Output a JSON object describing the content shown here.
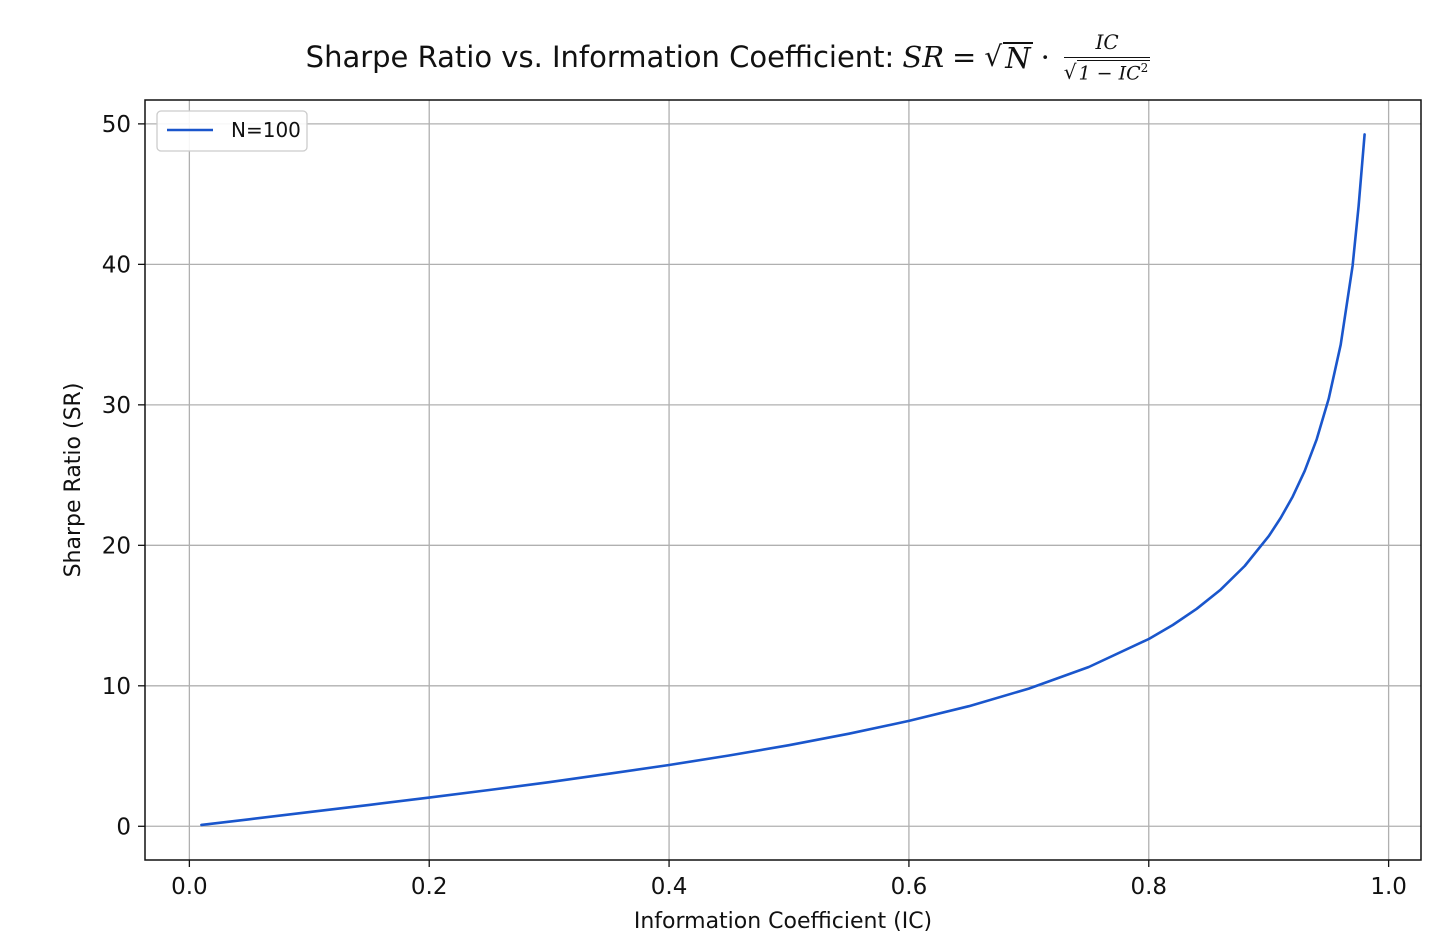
{
  "chart_data": {
    "type": "line",
    "title": {
      "text": "Sharpe Ratio vs. Information Coefficient:",
      "formula": {
        "lhs": "SR",
        "equals": "=",
        "sqrt_sym": "√",
        "sqrt_arg": "N",
        "dot": "·",
        "numerator": "IC",
        "denominator": "1 − IC",
        "denominator_exp": "2"
      }
    },
    "xlabel": "Information Coefficient (IC)",
    "ylabel": "Sharpe Ratio (SR)",
    "xlim": [
      -0.037,
      1.027
    ],
    "ylim": [
      -2.4,
      51.7
    ],
    "xticks": [
      0.0,
      0.2,
      0.4,
      0.6,
      0.8,
      1.0
    ],
    "xtick_labels": [
      "0.0",
      "0.2",
      "0.4",
      "0.6",
      "0.8",
      "1.0"
    ],
    "yticks": [
      0,
      10,
      20,
      30,
      40,
      50
    ],
    "ytick_labels": [
      "0",
      "10",
      "20",
      "30",
      "40",
      "50"
    ],
    "grid": true,
    "legend": {
      "position": "top-left"
    },
    "series": [
      {
        "name": "N=100",
        "color": "#1a56cc",
        "x": [
          0.01,
          0.05,
          0.1,
          0.15,
          0.2,
          0.25,
          0.3,
          0.35,
          0.4,
          0.45,
          0.5,
          0.55,
          0.6,
          0.65,
          0.7,
          0.75,
          0.8,
          0.82,
          0.84,
          0.86,
          0.88,
          0.9,
          0.91,
          0.92,
          0.93,
          0.94,
          0.95,
          0.96,
          0.97,
          0.975,
          0.98
        ],
        "y": [
          0.1,
          0.5,
          1.01,
          1.52,
          2.04,
          2.58,
          3.14,
          3.74,
          4.36,
          5.04,
          5.77,
          6.59,
          7.5,
          8.55,
          9.8,
          11.34,
          13.33,
          14.33,
          15.48,
          16.85,
          18.53,
          20.65,
          21.95,
          23.47,
          25.3,
          27.55,
          30.43,
          34.28,
          39.9,
          44.14,
          49.25
        ]
      }
    ]
  }
}
